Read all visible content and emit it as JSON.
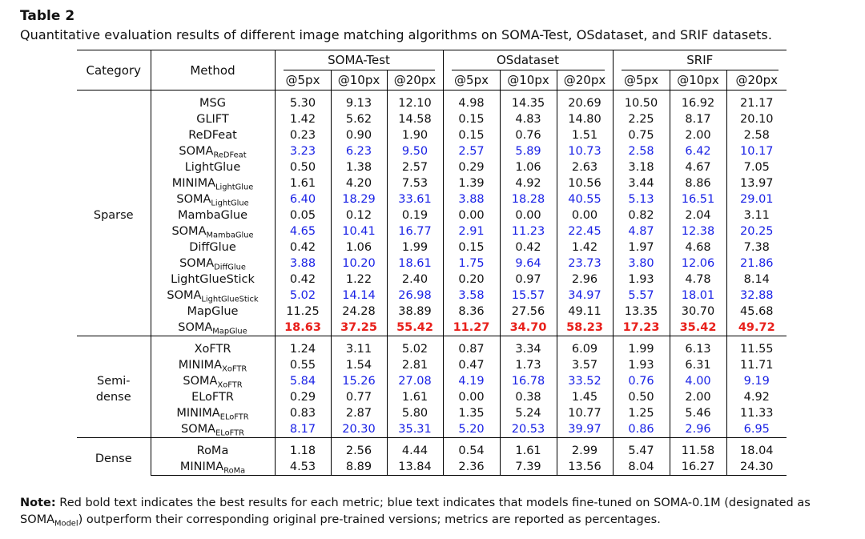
{
  "table_number": "Table 2",
  "caption": "Quantitative evaluation results of different image matching algorithms on SOMA-Test, OSdataset, and SRIF datasets.",
  "header": {
    "category": "Category",
    "method": "Method",
    "datasets": [
      "SOMA-Test",
      "OSdataset",
      "SRIF"
    ],
    "thresholds": [
      "@5px",
      "@10px",
      "@20px"
    ]
  },
  "groups": [
    {
      "category": "Sparse",
      "rows": [
        {
          "name": "MSG",
          "sub": "",
          "style": "normal",
          "values": [
            "5.30",
            "9.13",
            "12.10",
            "4.98",
            "14.35",
            "20.69",
            "10.50",
            "16.92",
            "21.17"
          ]
        },
        {
          "name": "GLIFT",
          "sub": "",
          "style": "normal",
          "values": [
            "1.42",
            "5.62",
            "14.58",
            "0.15",
            "4.83",
            "14.80",
            "2.25",
            "8.17",
            "20.10"
          ]
        },
        {
          "name": "ReDFeat",
          "sub": "",
          "style": "normal",
          "values": [
            "0.23",
            "0.90",
            "1.90",
            "0.15",
            "0.76",
            "1.51",
            "0.75",
            "2.00",
            "2.58"
          ]
        },
        {
          "name": "SOMA",
          "sub": "ReDFeat",
          "style": "blue",
          "values": [
            "3.23",
            "6.23",
            "9.50",
            "2.57",
            "5.89",
            "10.73",
            "2.58",
            "6.42",
            "10.17"
          ]
        },
        {
          "name": "LightGlue",
          "sub": "",
          "style": "normal",
          "values": [
            "0.50",
            "1.38",
            "2.57",
            "0.29",
            "1.06",
            "2.63",
            "3.18",
            "4.67",
            "7.05"
          ]
        },
        {
          "name": "MINIMA",
          "sub": "LightGlue",
          "style": "normal",
          "values": [
            "1.61",
            "4.20",
            "7.53",
            "1.39",
            "4.92",
            "10.56",
            "3.44",
            "8.86",
            "13.97"
          ]
        },
        {
          "name": "SOMA",
          "sub": "LightGlue",
          "style": "blue",
          "values": [
            "6.40",
            "18.29",
            "33.61",
            "3.88",
            "18.28",
            "40.55",
            "5.13",
            "16.51",
            "29.01"
          ]
        },
        {
          "name": "MambaGlue",
          "sub": "",
          "style": "normal",
          "values": [
            "0.05",
            "0.12",
            "0.19",
            "0.00",
            "0.00",
            "0.00",
            "0.82",
            "2.04",
            "3.11"
          ]
        },
        {
          "name": "SOMA",
          "sub": "MambaGlue",
          "style": "blue",
          "values": [
            "4.65",
            "10.41",
            "16.77",
            "2.91",
            "11.23",
            "22.45",
            "4.87",
            "12.38",
            "20.25"
          ]
        },
        {
          "name": "DiffGlue",
          "sub": "",
          "style": "normal",
          "values": [
            "0.42",
            "1.06",
            "1.99",
            "0.15",
            "0.42",
            "1.42",
            "1.97",
            "4.68",
            "7.38"
          ]
        },
        {
          "name": "SOMA",
          "sub": "DiffGlue",
          "style": "blue",
          "values": [
            "3.88",
            "10.20",
            "18.61",
            "1.75",
            "9.64",
            "23.73",
            "3.80",
            "12.06",
            "21.86"
          ]
        },
        {
          "name": "LightGlueStick",
          "sub": "",
          "style": "normal",
          "values": [
            "0.42",
            "1.22",
            "2.40",
            "0.20",
            "0.97",
            "2.96",
            "1.93",
            "4.78",
            "8.14"
          ]
        },
        {
          "name": "SOMA",
          "sub": "LightGlueStick",
          "style": "blue",
          "values": [
            "5.02",
            "14.14",
            "26.98",
            "3.58",
            "15.57",
            "34.97",
            "5.57",
            "18.01",
            "32.88"
          ]
        },
        {
          "name": "MapGlue",
          "sub": "",
          "style": "normal",
          "values": [
            "11.25",
            "24.28",
            "38.89",
            "8.36",
            "27.56",
            "49.11",
            "13.35",
            "30.70",
            "45.68"
          ]
        },
        {
          "name": "SOMA",
          "sub": "MapGlue",
          "style": "red",
          "values": [
            "18.63",
            "37.25",
            "55.42",
            "11.27",
            "34.70",
            "58.23",
            "17.23",
            "35.42",
            "49.72"
          ]
        }
      ]
    },
    {
      "category": "Semi-\ndense",
      "rows": [
        {
          "name": "XoFTR",
          "sub": "",
          "style": "normal",
          "values": [
            "1.24",
            "3.11",
            "5.02",
            "0.87",
            "3.34",
            "6.09",
            "1.99",
            "6.13",
            "11.55"
          ]
        },
        {
          "name": "MINIMA",
          "sub": "XoFTR",
          "style": "normal",
          "values": [
            "0.55",
            "1.54",
            "2.81",
            "0.47",
            "1.73",
            "3.57",
            "1.93",
            "6.31",
            "11.71"
          ]
        },
        {
          "name": "SOMA",
          "sub": "XoFTR",
          "style": "blue",
          "values": [
            "5.84",
            "15.26",
            "27.08",
            "4.19",
            "16.78",
            "33.52",
            "0.76",
            "4.00",
            "9.19"
          ]
        },
        {
          "name": "ELoFTR",
          "sub": "",
          "style": "normal",
          "values": [
            "0.29",
            "0.77",
            "1.61",
            "0.00",
            "0.38",
            "1.45",
            "0.50",
            "2.00",
            "4.92"
          ]
        },
        {
          "name": "MINIMA",
          "sub": "ELoFTR",
          "style": "normal",
          "values": [
            "0.83",
            "2.87",
            "5.80",
            "1.35",
            "5.24",
            "10.77",
            "1.25",
            "5.46",
            "11.33"
          ]
        },
        {
          "name": "SOMA",
          "sub": "ELoFTR",
          "style": "blue",
          "values": [
            "8.17",
            "20.30",
            "35.31",
            "5.20",
            "20.53",
            "39.97",
            "0.86",
            "2.96",
            "6.95"
          ]
        }
      ]
    },
    {
      "category": "Dense",
      "rows": [
        {
          "name": "RoMa",
          "sub": "",
          "style": "normal",
          "values": [
            "1.18",
            "2.56",
            "4.44",
            "0.54",
            "1.61",
            "2.99",
            "5.47",
            "11.58",
            "18.04"
          ]
        },
        {
          "name": "MINIMA",
          "sub": "RoMa",
          "style": "normal",
          "values": [
            "4.53",
            "8.89",
            "13.84",
            "2.36",
            "7.39",
            "13.56",
            "8.04",
            "16.27",
            "24.30"
          ]
        }
      ]
    }
  ],
  "note": {
    "label": "Note:",
    "text1": " Red bold text indicates the best results for each metric; blue text indicates that models fine-tuned on SOMA-0.1M (designated as SOMA",
    "sub": "Model",
    "text2": ") outperform their corresponding original pre-trained versions; metrics are reported as percentages."
  },
  "colors": {
    "blue": "#1a22e6",
    "red": "#e8201b"
  }
}
